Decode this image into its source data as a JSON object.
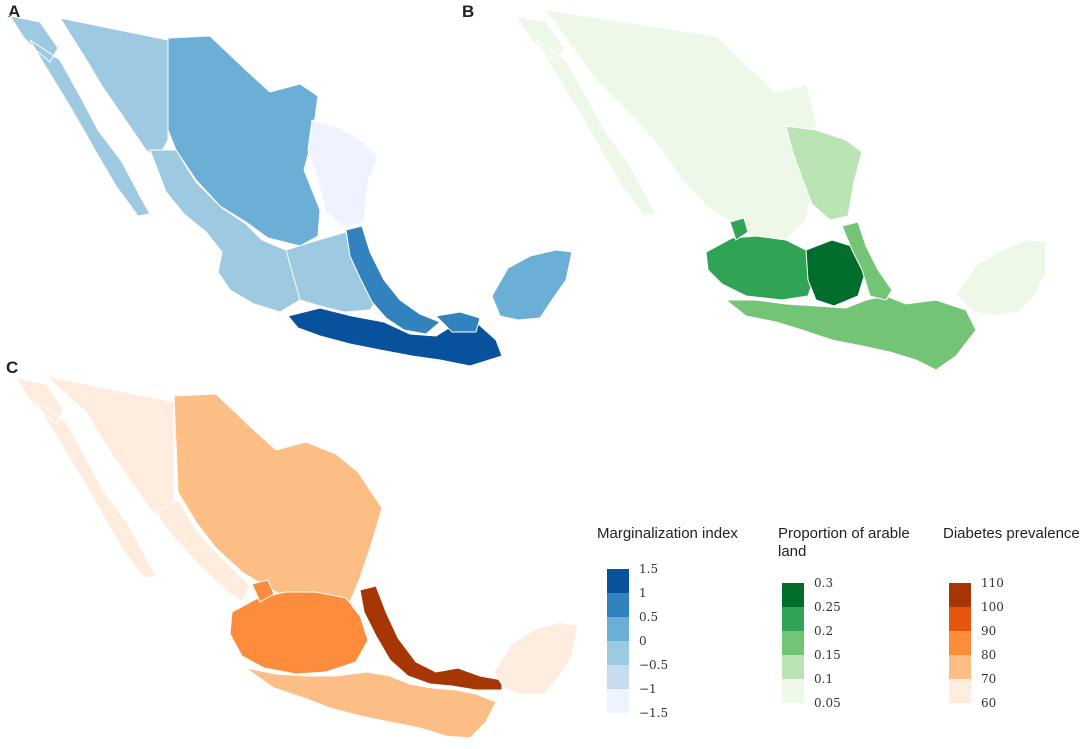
{
  "panels": [
    {
      "label": "A",
      "palette": [
        "#08519c",
        "#3182bd",
        "#6baed6",
        "#9ecae1",
        "#c6dbef",
        "#eff3ff"
      ]
    },
    {
      "label": "B",
      "palette": [
        "#006d2c",
        "#31a354",
        "#74c476",
        "#bae4b3",
        "#edf8e9"
      ]
    },
    {
      "label": "C",
      "palette": [
        "#a63603",
        "#e6550d",
        "#fd8d3c",
        "#fdbe85",
        "#feedde"
      ]
    }
  ],
  "legends": {
    "marginalization": {
      "title": "Marginalization index",
      "ticks": [
        "1.5",
        "1",
        "0.5",
        "0",
        "−0.5",
        "−1",
        "−1.5"
      ],
      "colors": [
        "#08519c",
        "#3182bd",
        "#6baed6",
        "#9ecae1",
        "#c6dbef",
        "#eff3ff"
      ]
    },
    "arable": {
      "title_line1": "Proportion of arable",
      "title_line2": "land",
      "ticks": [
        "0.3",
        "0.25",
        "0.2",
        "0.15",
        "0.1",
        "0.05"
      ],
      "colors": [
        "#006d2c",
        "#31a354",
        "#74c476",
        "#bae4b3",
        "#edf8e9"
      ]
    },
    "diabetes": {
      "title": "Diabetes prevalence",
      "ticks": [
        "110",
        "100",
        "90",
        "80",
        "70",
        "60"
      ],
      "colors": [
        "#a63603",
        "#e6550d",
        "#fd8d3c",
        "#fdbe85",
        "#feedde"
      ]
    }
  }
}
